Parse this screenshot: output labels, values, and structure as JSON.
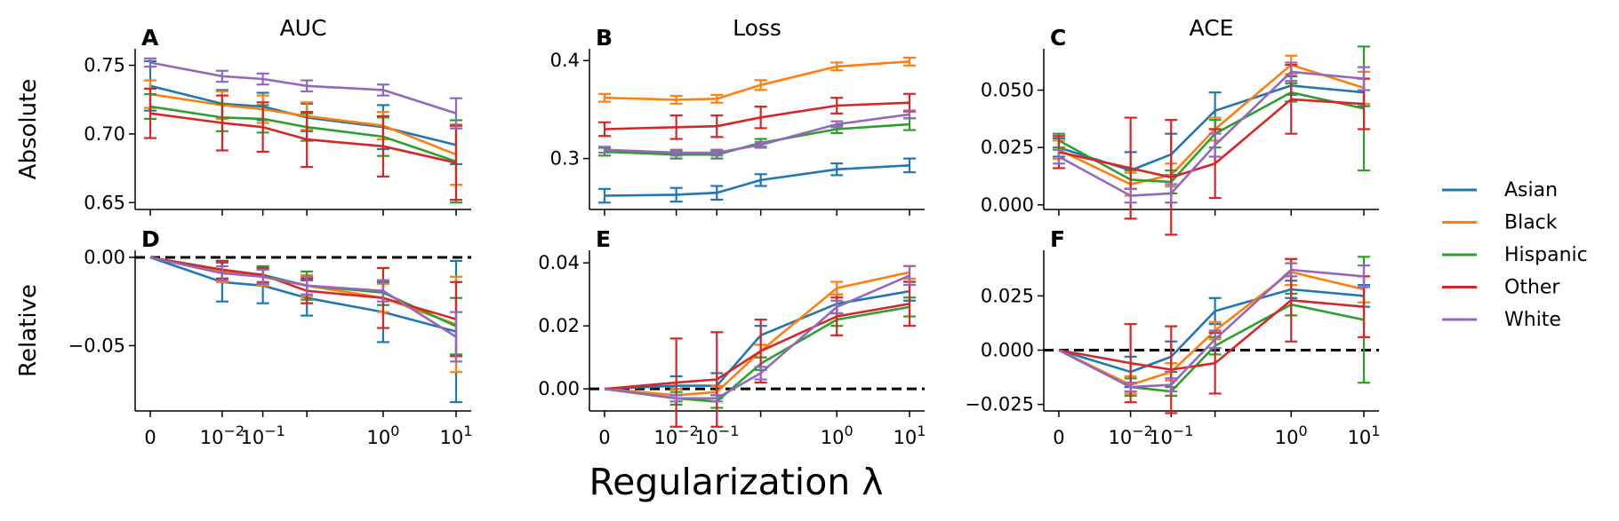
{
  "figure": {
    "xlabel": "Regularization λ",
    "x_ticks": [
      "0",
      "10^-2",
      "10^-1",
      "10^0",
      "10^1"
    ],
    "colors": {
      "Asian": "#1f77b4",
      "Black": "#ff7f0e",
      "Hispanic": "#2ca02c",
      "Other": "#d62728",
      "White": "#9467bd"
    },
    "legend": {
      "placement": "right",
      "entries": [
        "Asian",
        "Black",
        "Hispanic",
        "Other",
        "White"
      ]
    }
  },
  "chart_data": [
    {
      "type": "line",
      "panel": "A",
      "col_title": "AUC",
      "row_label": "Absolute",
      "x": [
        "0",
        "0.01",
        "0.056",
        "0.32",
        "1.8",
        "10"
      ],
      "ylim": [
        0.645,
        0.762
      ],
      "yticks": [
        "0.65",
        "0.70",
        "0.75"
      ],
      "reference_line": null,
      "series": [
        {
          "name": "Asian",
          "values": [
            0.735,
            0.722,
            0.72,
            0.712,
            0.705,
            0.692
          ],
          "err": [
            0.018,
            0.01,
            0.01,
            0.01,
            0.016,
            0.014
          ]
        },
        {
          "name": "Black",
          "values": [
            0.729,
            0.721,
            0.718,
            0.713,
            0.706,
            0.685
          ],
          "err": [
            0.01,
            0.01,
            0.01,
            0.01,
            0.01,
            0.022
          ]
        },
        {
          "name": "Hispanic",
          "values": [
            0.72,
            0.712,
            0.711,
            0.705,
            0.698,
            0.68
          ],
          "err": [
            0.009,
            0.01,
            0.01,
            0.01,
            0.014,
            0.03
          ]
        },
        {
          "name": "Other",
          "values": [
            0.715,
            0.708,
            0.705,
            0.696,
            0.691,
            0.679
          ],
          "err": [
            0.018,
            0.02,
            0.018,
            0.02,
            0.022,
            0.027
          ]
        },
        {
          "name": "White",
          "values": [
            0.752,
            0.742,
            0.74,
            0.735,
            0.732,
            0.715
          ],
          "err": [
            0.003,
            0.004,
            0.004,
            0.004,
            0.004,
            0.011
          ]
        }
      ]
    },
    {
      "type": "line",
      "panel": "B",
      "col_title": "Loss",
      "row_label": "",
      "x": [
        "0",
        "0.01",
        "0.056",
        "0.32",
        "1.8",
        "10"
      ],
      "ylim": [
        0.248,
        0.412
      ],
      "yticks": [
        "0.3",
        "0.4"
      ],
      "reference_line": null,
      "series": [
        {
          "name": "Asian",
          "values": [
            0.262,
            0.263,
            0.265,
            0.278,
            0.289,
            0.293
          ],
          "err": [
            0.007,
            0.007,
            0.007,
            0.006,
            0.006,
            0.007
          ]
        },
        {
          "name": "Black",
          "values": [
            0.362,
            0.36,
            0.361,
            0.375,
            0.394,
            0.399
          ],
          "err": [
            0.004,
            0.004,
            0.004,
            0.005,
            0.004,
            0.004
          ]
        },
        {
          "name": "Hispanic",
          "values": [
            0.307,
            0.304,
            0.304,
            0.316,
            0.33,
            0.335
          ],
          "err": [
            0.004,
            0.004,
            0.004,
            0.004,
            0.004,
            0.006
          ]
        },
        {
          "name": "Other",
          "values": [
            0.33,
            0.332,
            0.333,
            0.342,
            0.354,
            0.357
          ],
          "err": [
            0.007,
            0.012,
            0.011,
            0.011,
            0.008,
            0.009
          ]
        },
        {
          "name": "White",
          "values": [
            0.309,
            0.306,
            0.306,
            0.314,
            0.335,
            0.345
          ],
          "err": [
            0.003,
            0.003,
            0.003,
            0.003,
            0.003,
            0.004
          ]
        }
      ]
    },
    {
      "type": "line",
      "panel": "C",
      "col_title": "ACE",
      "row_label": "",
      "x": [
        "0",
        "0.01",
        "0.056",
        "0.32",
        "1.8",
        "10"
      ],
      "ylim": [
        -0.002,
        0.068
      ],
      "yticks": [
        "0.000",
        "0.025",
        "0.050"
      ],
      "reference_line": null,
      "series": [
        {
          "name": "Asian",
          "values": [
            0.025,
            0.015,
            0.022,
            0.041,
            0.052,
            0.049
          ],
          "err": [
            0.004,
            0.008,
            0.009,
            0.008,
            0.004,
            0.006
          ]
        },
        {
          "name": "Black",
          "values": [
            0.024,
            0.009,
            0.013,
            0.033,
            0.061,
            0.051
          ],
          "err": [
            0.004,
            0.005,
            0.005,
            0.005,
            0.004,
            0.007
          ]
        },
        {
          "name": "Hispanic",
          "values": [
            0.028,
            0.011,
            0.01,
            0.031,
            0.049,
            0.042
          ],
          "err": [
            0.003,
            0.004,
            0.005,
            0.006,
            0.004,
            0.027
          ]
        },
        {
          "name": "Other",
          "values": [
            0.023,
            0.016,
            0.012,
            0.018,
            0.046,
            0.044
          ],
          "err": [
            0.007,
            0.022,
            0.025,
            0.015,
            0.015,
            0.011
          ]
        },
        {
          "name": "White",
          "values": [
            0.021,
            0.004,
            0.005,
            0.026,
            0.058,
            0.055
          ],
          "err": [
            0.003,
            0.003,
            0.004,
            0.005,
            0.004,
            0.005
          ]
        }
      ]
    },
    {
      "type": "line",
      "panel": "D",
      "col_title": "",
      "row_label": "Relative",
      "x": [
        "0",
        "0.01",
        "0.056",
        "0.32",
        "1.8",
        "10"
      ],
      "ylim": [
        -0.087,
        0.004
      ],
      "yticks": [
        "0.00",
        "−0.05"
      ],
      "reference_line": 0,
      "series": [
        {
          "name": "Asian",
          "values": [
            0.0,
            -0.014,
            -0.016,
            -0.023,
            -0.031,
            -0.042
          ],
          "err": [
            0.0,
            0.011,
            0.01,
            0.01,
            0.017,
            0.04
          ]
        },
        {
          "name": "Black",
          "values": [
            0.0,
            -0.008,
            -0.011,
            -0.016,
            -0.023,
            -0.038
          ],
          "err": [
            0.0,
            0.006,
            0.005,
            0.006,
            0.008,
            0.027
          ]
        },
        {
          "name": "Hispanic",
          "values": [
            0.0,
            -0.007,
            -0.01,
            -0.016,
            -0.02,
            -0.039
          ],
          "err": [
            0.0,
            0.005,
            0.005,
            0.008,
            0.007,
            0.016
          ]
        },
        {
          "name": "Other",
          "values": [
            0.0,
            -0.007,
            -0.01,
            -0.019,
            -0.023,
            -0.035
          ],
          "err": [
            0.0,
            0.005,
            0.004,
            0.007,
            0.017,
            0.021
          ]
        },
        {
          "name": "White",
          "values": [
            0.0,
            -0.009,
            -0.011,
            -0.016,
            -0.019,
            -0.045
          ],
          "err": [
            0.0,
            0.004,
            0.004,
            0.005,
            0.006,
            0.014
          ]
        }
      ]
    },
    {
      "type": "line",
      "panel": "E",
      "col_title": "",
      "row_label": "",
      "x": [
        "0",
        "0.01",
        "0.056",
        "0.32",
        "1.8",
        "10"
      ],
      "ylim": [
        -0.007,
        0.044
      ],
      "yticks": [
        "0.00",
        "0.02",
        "0.04"
      ],
      "reference_line": 0,
      "series": [
        {
          "name": "Asian",
          "values": [
            0.0,
            0.001,
            0.001,
            0.017,
            0.027,
            0.031
          ],
          "err": [
            0.0,
            0.003,
            0.004,
            0.003,
            0.003,
            0.003
          ]
        },
        {
          "name": "Black",
          "values": [
            0.0,
            -0.002,
            -0.001,
            0.012,
            0.032,
            0.037
          ],
          "err": [
            0.0,
            0.002,
            0.002,
            0.002,
            0.002,
            0.002
          ]
        },
        {
          "name": "Hispanic",
          "values": [
            0.0,
            -0.003,
            -0.004,
            0.008,
            0.022,
            0.026
          ],
          "err": [
            0.0,
            0.002,
            0.002,
            0.002,
            0.002,
            0.003
          ]
        },
        {
          "name": "Other",
          "values": [
            0.0,
            0.002,
            0.003,
            0.012,
            0.023,
            0.027
          ],
          "err": [
            0.0,
            0.014,
            0.015,
            0.01,
            0.006,
            0.007
          ]
        },
        {
          "name": "White",
          "values": [
            0.0,
            -0.003,
            -0.003,
            0.005,
            0.026,
            0.036
          ],
          "err": [
            0.0,
            0.001,
            0.001,
            0.002,
            0.002,
            0.003
          ]
        }
      ]
    },
    {
      "type": "line",
      "panel": "F",
      "col_title": "",
      "row_label": "",
      "x": [
        "0",
        "0.01",
        "0.056",
        "0.32",
        "1.8",
        "10"
      ],
      "ylim": [
        -0.028,
        0.046
      ],
      "yticks": [
        "−0.025",
        "0.000",
        "0.025"
      ],
      "reference_line": 0,
      "series": [
        {
          "name": "Asian",
          "values": [
            0.0,
            -0.01,
            -0.003,
            0.018,
            0.028,
            0.025
          ],
          "err": [
            0.0,
            0.007,
            0.007,
            0.006,
            0.004,
            0.005
          ]
        },
        {
          "name": "Black",
          "values": [
            0.0,
            -0.016,
            -0.01,
            0.009,
            0.036,
            0.028
          ],
          "err": [
            0.0,
            0.004,
            0.004,
            0.004,
            0.006,
            0.006
          ]
        },
        {
          "name": "Hispanic",
          "values": [
            0.0,
            -0.017,
            -0.019,
            0.002,
            0.021,
            0.014
          ],
          "err": [
            0.0,
            0.004,
            0.002,
            0.004,
            0.005,
            0.029
          ]
        },
        {
          "name": "Other",
          "values": [
            0.0,
            -0.006,
            -0.009,
            -0.006,
            0.023,
            0.02
          ],
          "err": [
            0.0,
            0.018,
            0.02,
            0.014,
            0.019,
            0.014
          ]
        },
        {
          "name": "White",
          "values": [
            0.0,
            -0.017,
            -0.016,
            0.005,
            0.037,
            0.034
          ],
          "err": [
            0.0,
            0.002,
            0.003,
            0.004,
            0.003,
            0.005
          ]
        }
      ]
    }
  ]
}
